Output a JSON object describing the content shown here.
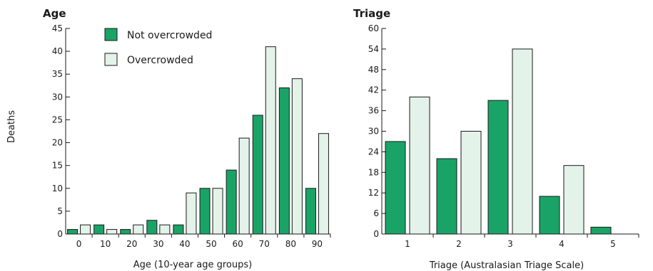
{
  "colors": {
    "not_overcrowded": "#1aa366",
    "overcrowded": "#e3f3e9",
    "stroke": "#1a1a1a"
  },
  "shared_ylabel": "Deaths",
  "legend": [
    "Not overcrowded",
    "Overcrowded"
  ],
  "chart_data": [
    {
      "type": "bar",
      "title": "Age",
      "xlabel": "Age (10-year age groups)",
      "ylabel": "Deaths",
      "categories": [
        "0",
        "10",
        "20",
        "30",
        "40",
        "50",
        "60",
        "70",
        "80",
        "90"
      ],
      "ylim": [
        0,
        45
      ],
      "yticks": [
        0,
        5,
        10,
        15,
        20,
        25,
        30,
        35,
        40,
        45
      ],
      "series": [
        {
          "name": "Not overcrowded",
          "values": [
            1,
            2,
            1,
            3,
            2,
            10,
            14,
            26,
            32,
            10
          ]
        },
        {
          "name": "Overcrowded",
          "values": [
            2,
            1,
            2,
            2,
            9,
            10,
            21,
            41,
            34,
            22
          ]
        }
      ],
      "legend_position": "top-left",
      "grid": false
    },
    {
      "type": "bar",
      "title": "Triage",
      "xlabel": "Triage (Australasian Triage Scale)",
      "ylabel": "",
      "categories": [
        "1",
        "2",
        "3",
        "4",
        "5"
      ],
      "ylim": [
        0,
        60
      ],
      "yticks": [
        0,
        6,
        12,
        18,
        24,
        30,
        36,
        42,
        48,
        54,
        60
      ],
      "series": [
        {
          "name": "Not overcrowded",
          "values": [
            27,
            22,
            39,
            11,
            2
          ]
        },
        {
          "name": "Overcrowded",
          "values": [
            40,
            30,
            54,
            20,
            0
          ]
        }
      ],
      "grid": false
    }
  ]
}
